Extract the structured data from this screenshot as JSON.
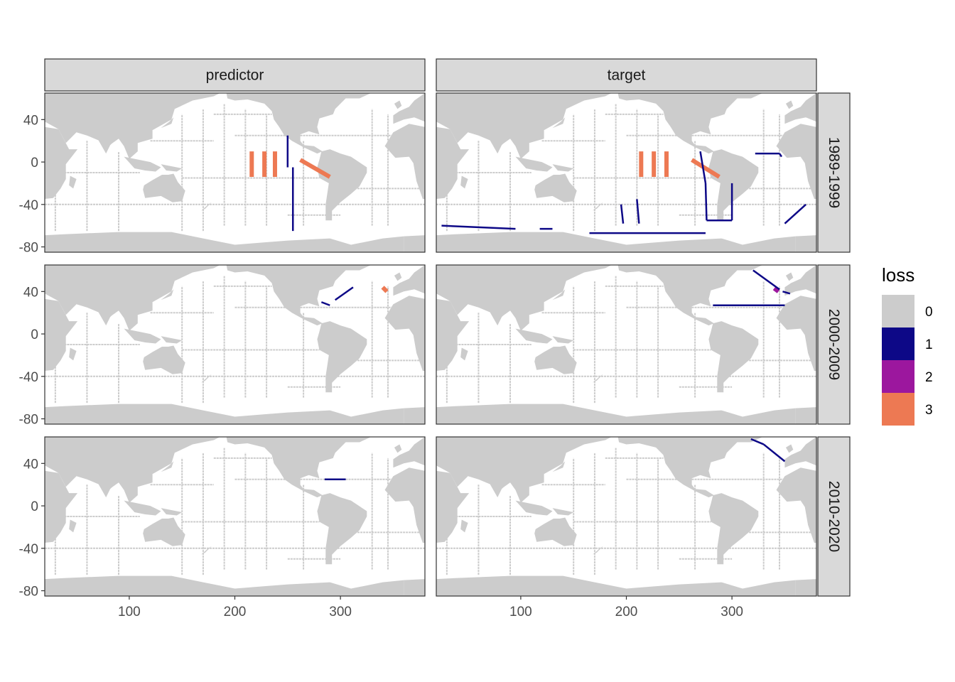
{
  "chart_data": {
    "type": "heatmap",
    "facet_columns": [
      "predictor",
      "target"
    ],
    "facet_rows": [
      "1989-1999",
      "2000-2009",
      "2010-2020"
    ],
    "x_ticks": [
      100,
      200,
      300
    ],
    "y_ticks": [
      40,
      0,
      -40,
      -80
    ],
    "y_tick_labels": [
      "40",
      "0",
      "-40",
      "-80"
    ],
    "xlim": [
      20,
      380
    ],
    "ylim": [
      -85,
      65
    ],
    "legend": {
      "title": "loss",
      "position": "right",
      "levels": [
        {
          "label": "0",
          "color": "#cccccc"
        },
        {
          "label": "1",
          "color": "#0d0887"
        },
        {
          "label": "2",
          "color": "#9c179e"
        },
        {
          "label": "3",
          "color": "#ed7953"
        }
      ]
    },
    "colors": {
      "land": "#cccccc",
      "ocean": "#ffffff",
      "strip_bg": "#d9d9d9",
      "panel_border": "#333333"
    },
    "highlights": [
      {
        "column": "predictor",
        "row": "1989-1999",
        "loss": 3,
        "segments": [
          [
            [
              216,
              10
            ],
            [
              216,
              -14
            ]
          ],
          [
            [
              228,
              10
            ],
            [
              228,
              -14
            ]
          ],
          [
            [
              238,
              10
            ],
            [
              238,
              -14
            ]
          ],
          [
            [
              262,
              2
            ],
            [
              290,
              -14
            ]
          ]
        ]
      },
      {
        "column": "predictor",
        "row": "1989-1999",
        "loss": 1,
        "segments": [
          [
            [
              250,
              25
            ],
            [
              250,
              -5
            ]
          ],
          [
            [
              255,
              -5
            ],
            [
              255,
              -65
            ]
          ]
        ]
      },
      {
        "column": "predictor",
        "row": "2000-2009",
        "loss": 3,
        "segments": [
          [
            [
              340,
              44
            ],
            [
              344,
              40
            ]
          ]
        ]
      },
      {
        "column": "predictor",
        "row": "2000-2009",
        "loss": 1,
        "segments": [
          [
            [
              282,
              30
            ],
            [
              290,
              27
            ]
          ],
          [
            [
              295,
              32
            ],
            [
              312,
              44
            ]
          ]
        ]
      },
      {
        "column": "predictor",
        "row": "2010-2020",
        "loss": 1,
        "segments": [
          [
            [
              285,
              25
            ],
            [
              305,
              25
            ]
          ]
        ]
      },
      {
        "column": "target",
        "row": "1989-1999",
        "loss": 3,
        "segments": [
          [
            [
              214,
              10
            ],
            [
              214,
              -14
            ]
          ],
          [
            [
              226,
              10
            ],
            [
              226,
              -14
            ]
          ],
          [
            [
              238,
              10
            ],
            [
              238,
              -14
            ]
          ],
          [
            [
              262,
              2
            ],
            [
              288,
              -14
            ]
          ]
        ]
      },
      {
        "column": "target",
        "row": "1989-1999",
        "loss": 1,
        "segments": [
          [
            [
              25,
              -60
            ],
            [
              95,
              -63
            ]
          ],
          [
            [
              118,
              -63
            ],
            [
              130,
              -63
            ]
          ],
          [
            [
              165,
              -67
            ],
            [
              275,
              -67
            ]
          ],
          [
            [
              270,
              10
            ],
            [
              275,
              -20
            ]
          ],
          [
            [
              275,
              -20
            ],
            [
              276,
              -55
            ]
          ],
          [
            [
              276,
              -55
            ],
            [
              300,
              -55
            ]
          ],
          [
            [
              300,
              -55
            ],
            [
              300,
              -20
            ]
          ],
          [
            [
              322,
              8
            ],
            [
              345,
              8
            ]
          ],
          [
            [
              345,
              8
            ],
            [
              347,
              5
            ]
          ],
          [
            [
              350,
              -58
            ],
            [
              370,
              -40
            ]
          ],
          [
            [
              195,
              -40
            ],
            [
              197,
              -58
            ]
          ],
          [
            [
              210,
              -35
            ],
            [
              212,
              -58
            ]
          ]
        ]
      },
      {
        "column": "target",
        "row": "2000-2009",
        "loss": 2,
        "segments": [
          [
            [
              340,
              43
            ],
            [
              344,
              40
            ]
          ]
        ]
      },
      {
        "column": "target",
        "row": "2000-2009",
        "loss": 1,
        "segments": [
          [
            [
              320,
              60
            ],
            [
              345,
              42
            ]
          ],
          [
            [
              282,
              27
            ],
            [
              350,
              27
            ]
          ],
          [
            [
              348,
              40
            ],
            [
              355,
              38
            ]
          ]
        ]
      },
      {
        "column": "target",
        "row": "2010-2020",
        "loss": 1,
        "segments": [
          [
            [
              318,
              63
            ],
            [
              330,
              58
            ]
          ],
          [
            [
              330,
              58
            ],
            [
              350,
              42
            ]
          ]
        ]
      }
    ]
  }
}
